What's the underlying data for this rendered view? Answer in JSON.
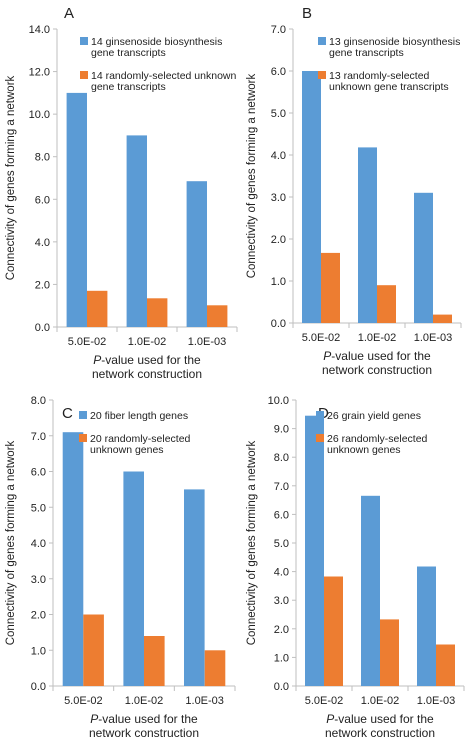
{
  "panels": [
    {
      "letter": "A",
      "ylabel": "Connectivity of genes forming a network",
      "xlabel_italic": "P",
      "xlabel_rest": "-value used for the",
      "xlabel_line2": "network construction"
    },
    {
      "letter": "B",
      "ylabel": "Connectivity of genes forming a network",
      "xlabel_italic": "P",
      "xlabel_rest": "-value used for the",
      "xlabel_line2": "network construction"
    },
    {
      "letter": "C",
      "ylabel": "Connectivity of genes forming a network",
      "xlabel_italic": "P",
      "xlabel_rest": "-value used for the",
      "xlabel_line2": "network construction"
    },
    {
      "letter": "D",
      "ylabel": "Connectivity of genes forming a network",
      "xlabel_italic": "P",
      "xlabel_rest": "-value used for the",
      "xlabel_line2": "network construction"
    }
  ],
  "colors": {
    "series1": "#5b9bd5",
    "series2": "#ed7d31",
    "axis": "#bfbfbf",
    "text": "#222222"
  },
  "chart_data": [
    {
      "type": "bar",
      "categories": [
        "5.0E-02",
        "1.0E-02",
        "1.0E-03"
      ],
      "series": [
        {
          "name": "14 ginsenoside biosynthesis gene transcripts",
          "legend_lines": [
            "14 ginsenoside biosynthesis",
            "gene transcripts"
          ],
          "values": [
            11.0,
            9.0,
            6.85
          ]
        },
        {
          "name": "14 randomly-selected unknown gene transcripts",
          "legend_lines": [
            "14 randomly-selected unknown",
            "gene transcripts"
          ],
          "values": [
            1.7,
            1.35,
            1.02
          ]
        }
      ],
      "ylim": [
        0,
        14
      ],
      "yticks": [
        "0.0",
        "2.0",
        "4.0",
        "6.0",
        "8.0",
        "10.0",
        "12.0",
        "14.0"
      ],
      "legend": "top-right",
      "grid": false
    },
    {
      "type": "bar",
      "categories": [
        "5.0E-02",
        "1.0E-02",
        "1.0E-03"
      ],
      "series": [
        {
          "name": "13 ginsenoside biosynthesis gene transcripts",
          "legend_lines": [
            "13 ginsenoside biosynthesis",
            "gene transcripts"
          ],
          "values": [
            6.0,
            4.18,
            3.1
          ]
        },
        {
          "name": "13 randomly-selected unknown gene transcripts",
          "legend_lines": [
            "13 randomly-selected",
            "unknown gene transcripts"
          ],
          "values": [
            1.67,
            0.9,
            0.2
          ]
        }
      ],
      "ylim": [
        0,
        7
      ],
      "yticks": [
        "0.0",
        "1.0",
        "2.0",
        "3.0",
        "4.0",
        "5.0",
        "6.0",
        "7.0"
      ],
      "legend": "top-right",
      "grid": false
    },
    {
      "type": "bar",
      "categories": [
        "5.0E-02",
        "1.0E-02",
        "1.0E-03"
      ],
      "series": [
        {
          "name": "20 fiber length genes",
          "legend_lines": [
            "20 fiber length genes"
          ],
          "values": [
            7.1,
            6.0,
            5.5
          ]
        },
        {
          "name": "20 randomly-selected unknown genes",
          "legend_lines": [
            "20 randomly-selected",
            "unknown genes"
          ],
          "values": [
            2.0,
            1.4,
            1.0
          ]
        }
      ],
      "ylim": [
        0,
        8
      ],
      "yticks": [
        "0.0",
        "1.0",
        "2.0",
        "3.0",
        "4.0",
        "5.0",
        "6.0",
        "7.0",
        "8.0"
      ],
      "legend": "top-right",
      "grid": false
    },
    {
      "type": "bar",
      "categories": [
        "5.0E-02",
        "1.0E-02",
        "1.0E-03"
      ],
      "series": [
        {
          "name": "26 grain yield genes",
          "legend_lines": [
            "26 grain yield genes"
          ],
          "values": [
            9.45,
            6.65,
            4.18
          ]
        },
        {
          "name": "26 randomly-selected unknown genes",
          "legend_lines": [
            "26 randomly-selected",
            "unknown genes"
          ],
          "values": [
            3.83,
            2.33,
            1.45
          ]
        }
      ],
      "ylim": [
        0,
        10
      ],
      "yticks": [
        "0.0",
        "1.0",
        "2.0",
        "3.0",
        "4.0",
        "5.0",
        "6.0",
        "7.0",
        "8.0",
        "9.0",
        "10.0"
      ],
      "legend": "top-right",
      "grid": false
    }
  ]
}
